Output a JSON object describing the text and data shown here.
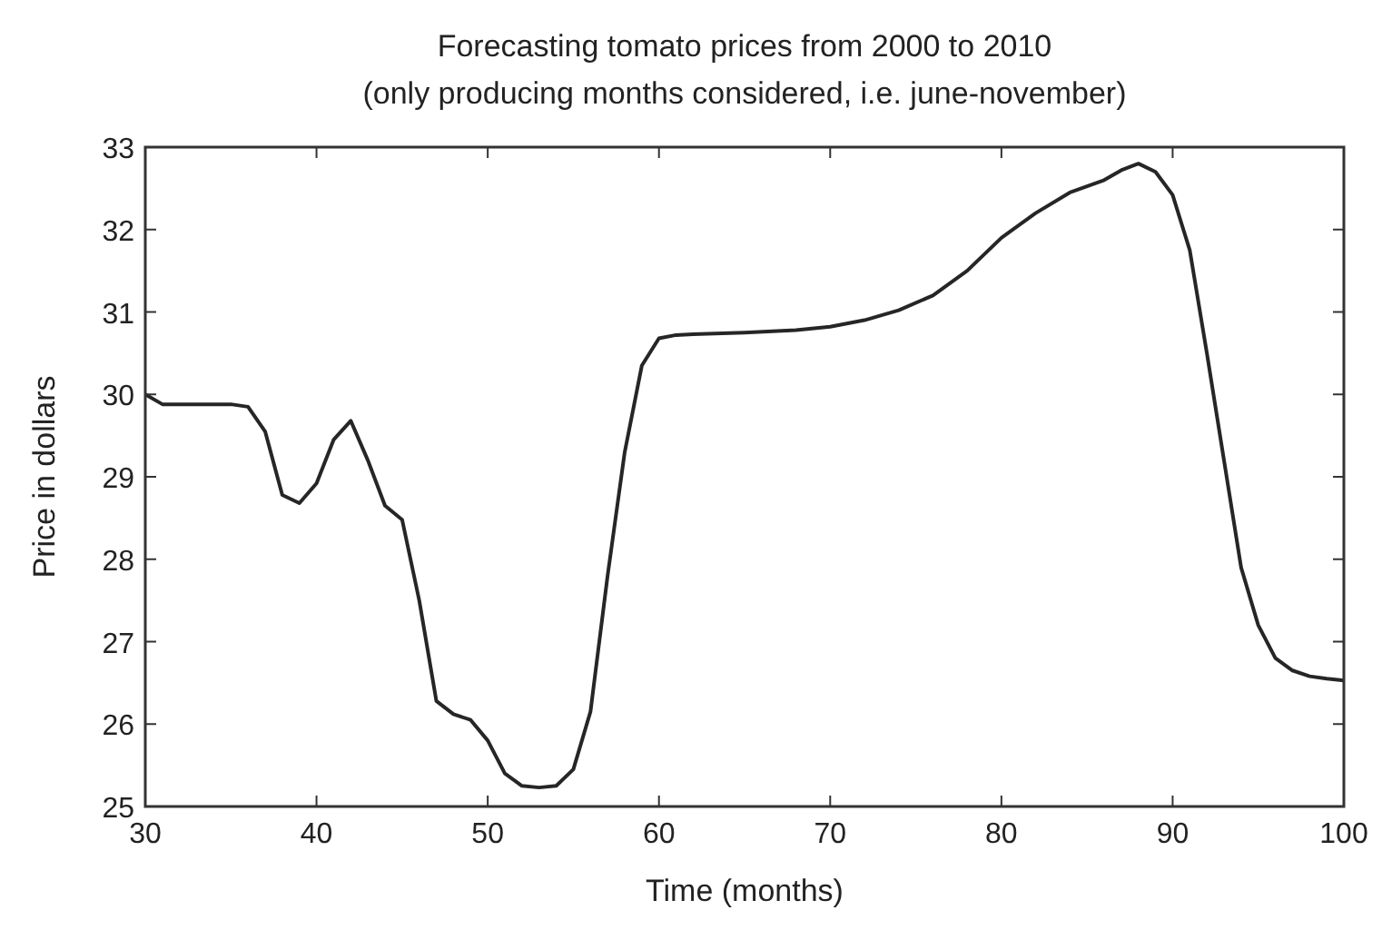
{
  "chart_data": {
    "type": "line",
    "title": "Forecasting tomato prices from 2000 to 2010",
    "subtitle": "(only producing months considered, i.e. june-november)",
    "xlabel": "Time (months)",
    "ylabel": "Price in dollars",
    "x": [
      30,
      31,
      33,
      35,
      36,
      37,
      38,
      39,
      40,
      41,
      42,
      43,
      44,
      45,
      46,
      47,
      48,
      49,
      50,
      51,
      52,
      53,
      54,
      55,
      56,
      57,
      58,
      59,
      60,
      61,
      62,
      65,
      68,
      70,
      72,
      74,
      76,
      78,
      80,
      82,
      84,
      86,
      87,
      88,
      89,
      90,
      91,
      92,
      93,
      94,
      95,
      96,
      97,
      98,
      99,
      100
    ],
    "series": [
      {
        "color": "#262626",
        "values": [
          30.0,
          29.88,
          29.88,
          29.88,
          29.85,
          29.55,
          28.78,
          28.68,
          28.92,
          29.45,
          29.68,
          29.2,
          28.65,
          28.48,
          27.5,
          26.28,
          26.12,
          26.05,
          25.8,
          25.4,
          25.25,
          25.23,
          25.25,
          25.45,
          26.15,
          27.8,
          29.3,
          30.35,
          30.68,
          30.72,
          30.73,
          30.75,
          30.78,
          30.82,
          30.9,
          31.02,
          31.2,
          31.5,
          31.9,
          32.2,
          32.45,
          32.6,
          32.72,
          32.8,
          32.7,
          32.42,
          31.75,
          30.5,
          29.2,
          27.9,
          27.2,
          26.8,
          26.65,
          26.58,
          26.55,
          26.53
        ]
      }
    ],
    "xlim": [
      30,
      100
    ],
    "xticks": [
      30,
      40,
      50,
      60,
      70,
      80,
      90,
      100
    ],
    "ylim": [
      25,
      33
    ],
    "yticks": [
      25,
      26,
      27,
      28,
      29,
      30,
      31,
      32,
      33
    ],
    "grid": false,
    "marker": "none",
    "line_style": "solid"
  }
}
